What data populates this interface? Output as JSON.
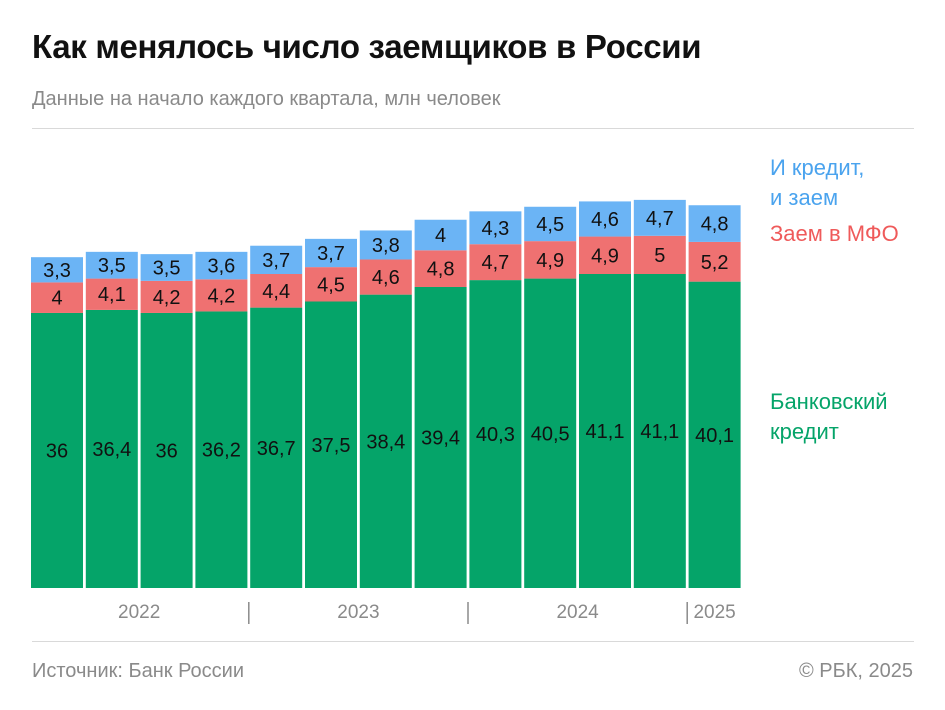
{
  "title": "Как менялось число заемщиков в России",
  "subtitle": "Данные на начало каждого квартала, млн человек",
  "source": "Источник: Банк России",
  "copyright": "© РБК, 2025",
  "colors": {
    "bank": "#05a469",
    "mfo": "#ef7171",
    "both": "#6bb4f5",
    "text": "#111111",
    "axis": "#8a8a8a"
  },
  "chart_data": {
    "type": "bar",
    "stacked": true,
    "categories": [
      "",
      "",
      "",
      "",
      "",
      "",
      "",
      "",
      "",
      "",
      "",
      "",
      ""
    ],
    "year_labels": [
      "2022",
      "2023",
      "2024",
      "2025"
    ],
    "series": [
      {
        "name": "Банковский кредит",
        "key": "bank",
        "values": [
          36,
          36.4,
          36,
          36.2,
          36.7,
          37.5,
          38.4,
          39.4,
          40.3,
          40.5,
          41.1,
          41.1,
          40.1
        ],
        "labels": [
          "36",
          "36,4",
          "36",
          "36,2",
          "36,7",
          "37,5",
          "38,4",
          "39,4",
          "40,3",
          "40,5",
          "41,1",
          "41,1",
          "40,1"
        ]
      },
      {
        "name": "Заем в МФО",
        "key": "mfo",
        "values": [
          4,
          4.1,
          4.2,
          4.2,
          4.4,
          4.5,
          4.6,
          4.8,
          4.7,
          4.9,
          4.9,
          5,
          5.2
        ],
        "labels": [
          "4",
          "4,1",
          "4,2",
          "4,2",
          "4,4",
          "4,5",
          "4,6",
          "4,8",
          "4,7",
          "4,9",
          "4,9",
          "5",
          "5,2"
        ]
      },
      {
        "name": "И кредит, и заем",
        "key": "both",
        "values": [
          3.3,
          3.5,
          3.5,
          3.6,
          3.7,
          3.7,
          3.8,
          4,
          4.3,
          4.5,
          4.6,
          4.7,
          4.8
        ],
        "labels": [
          "3,3",
          "3,5",
          "3,5",
          "3,6",
          "3,7",
          "3,7",
          "3,8",
          "4",
          "4,3",
          "4,5",
          "4,6",
          "4,7",
          "4,8"
        ]
      }
    ],
    "legend": {
      "both": "И кредит,\nи заем",
      "mfo": "Заем в МФО",
      "bank": "Банковский\nкредит"
    },
    "legend_position": "right",
    "ylim": [
      0,
      50
    ],
    "grid": false
  }
}
